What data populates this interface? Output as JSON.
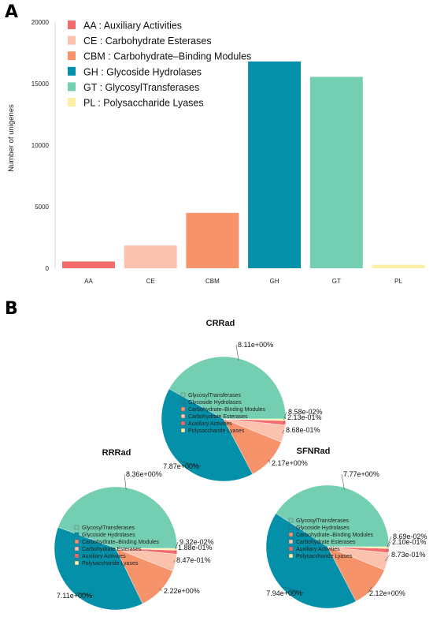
{
  "panel_a_letter": "A",
  "panel_b_letter": "B",
  "colors": {
    "AA": "#f36b6b",
    "CE": "#fbc3ae",
    "CBM": "#f7936b",
    "GH": "#0390a8",
    "GT": "#74ceb2",
    "PL": "#fdf0a6"
  },
  "chart_data": [
    {
      "type": "bar",
      "ylabel": "Number of unigenes",
      "xlabel": "",
      "ylim": [
        0,
        20000
      ],
      "yticks": [
        0,
        5000,
        10000,
        15000,
        20000
      ],
      "categories": [
        "AA",
        "CE",
        "CBM",
        "GH",
        "GT",
        "PL"
      ],
      "values": [
        550,
        1850,
        4500,
        16800,
        15550,
        280
      ],
      "legend_position": "top-left",
      "legend": [
        {
          "key": "AA",
          "sep": ":",
          "label": "Auxiliary Activities"
        },
        {
          "key": "CE",
          "sep": ":",
          "label": "Carbohydrate Esterases"
        },
        {
          "key": "CBM",
          "sep": ":",
          "label": "Carbohydrate–Binding Modules"
        },
        {
          "key": "GH",
          "sep": ":",
          "label": "Glycoside Hydrolases"
        },
        {
          "key": "GT",
          "sep": ":",
          "label": "GlycosylTransferases"
        },
        {
          "key": "PL",
          "sep": ":",
          "label": "Polysaccharide Lyases"
        }
      ]
    },
    {
      "type": "pie",
      "title": "CRRad",
      "legend": [
        "GlycosylTransferases",
        "Glycoside Hydrolases",
        "Carbohydrate–Binding Modules",
        "Carbohydrate Esterases",
        "Auxiliary Activities",
        "Polysaccharide Lyases"
      ],
      "slices": [
        {
          "key": "GT",
          "value": 8.11,
          "label": "8.11e+00%"
        },
        {
          "key": "GH",
          "value": 7.87,
          "label": "7.87e+00%"
        },
        {
          "key": "CBM",
          "value": 2.17,
          "label": "2.17e+00%"
        },
        {
          "key": "CE",
          "value": 0.868,
          "label": "8.68e-01%"
        },
        {
          "key": "AA",
          "value": 0.213,
          "label": "2.13e-01%"
        },
        {
          "key": "PL",
          "value": 0.0858,
          "label": "8.58e-02%"
        }
      ]
    },
    {
      "type": "pie",
      "title": "RRRad",
      "legend": [
        "GlycosylTransferases",
        "Glycoside Hydrolases",
        "Carbohydrate–Binding Modules",
        "Carbohydrate Esterases",
        "Auxiliary Activities",
        "Polysaccharide Lyases"
      ],
      "slices": [
        {
          "key": "GT",
          "value": 8.36,
          "label": "8.36e+00%"
        },
        {
          "key": "GH",
          "value": 7.11,
          "label": "7.11e+00%"
        },
        {
          "key": "CBM",
          "value": 2.22,
          "label": "2.22e+00%"
        },
        {
          "key": "CE",
          "value": 0.847,
          "label": "8.47e-01%"
        },
        {
          "key": "AA",
          "value": 0.188,
          "label": "1.88e-01%"
        },
        {
          "key": "PL",
          "value": 0.0932,
          "label": "9.32e-02%"
        }
      ]
    },
    {
      "type": "pie",
      "title": "SFNRad",
      "legend": [
        "GlycosylTransferases",
        "Glycoside Hydrolases",
        "Carbohydrate–Binding Modules",
        "Carbohydrate Esterases",
        "Auxiliary Activities",
        "Polysaccharide Lyases"
      ],
      "slices": [
        {
          "key": "GT",
          "value": 7.77,
          "label": "7.77e+00%"
        },
        {
          "key": "GH",
          "value": 7.94,
          "label": "7.94e+00%"
        },
        {
          "key": "CBM",
          "value": 2.12,
          "label": "2.12e+00%"
        },
        {
          "key": "CE",
          "value": 0.873,
          "label": "8.73e-01%"
        },
        {
          "key": "AA",
          "value": 0.21,
          "label": "2.10e-01%"
        },
        {
          "key": "PL",
          "value": 0.0869,
          "label": "8.69e-02%"
        }
      ]
    }
  ]
}
